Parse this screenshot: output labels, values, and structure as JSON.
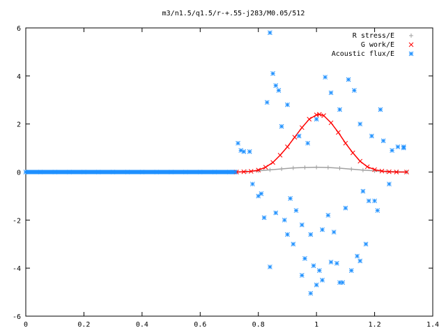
{
  "chart_data": {
    "type": "scatter",
    "title": "m3/n1.5/q1.5/r-+.55-j283/M0.05/512",
    "xlim": [
      0,
      1.4
    ],
    "ylim": [
      -6,
      6
    ],
    "x_ticks": [
      "0",
      "0.2",
      "0.4",
      "0.6",
      "0.8",
      "1",
      "1.2",
      "1.4"
    ],
    "y_ticks": [
      "-6",
      "-4",
      "-2",
      "0",
      "2",
      "4",
      "6"
    ],
    "legend_position": "top-right",
    "series": [
      {
        "name": "R stress/E",
        "color": "#a0a0a0",
        "marker": "plus",
        "x": [
          0.725,
          0.76,
          0.8,
          0.84,
          0.88,
          0.92,
          0.96,
          1.0,
          1.04,
          1.08,
          1.12,
          1.16,
          1.2,
          1.24,
          1.28,
          1.31
        ],
        "y": [
          0.0,
          0.02,
          0.05,
          0.09,
          0.13,
          0.17,
          0.19,
          0.2,
          0.19,
          0.16,
          0.12,
          0.08,
          0.05,
          0.02,
          0.01,
          0.0
        ]
      },
      {
        "name": "G work/E",
        "color": "#ff0000",
        "marker": "cross",
        "x": [
          0.725,
          0.75,
          0.775,
          0.8,
          0.825,
          0.85,
          0.875,
          0.9,
          0.925,
          0.95,
          0.975,
          1.0,
          1.01,
          1.025,
          1.05,
          1.075,
          1.1,
          1.125,
          1.15,
          1.175,
          1.2,
          1.225,
          1.25,
          1.275,
          1.31
        ],
        "y": [
          0.0,
          0.01,
          0.03,
          0.08,
          0.2,
          0.4,
          0.7,
          1.05,
          1.45,
          1.85,
          2.2,
          2.38,
          2.4,
          2.35,
          2.05,
          1.65,
          1.2,
          0.8,
          0.45,
          0.22,
          0.1,
          0.04,
          0.01,
          0.0,
          0.0
        ]
      },
      {
        "name": "Acoustic flux/E",
        "color": "#1e90ff",
        "marker": "star",
        "x": [
          0.0,
          0.05,
          0.1,
          0.15,
          0.2,
          0.25,
          0.3,
          0.35,
          0.4,
          0.45,
          0.5,
          0.55,
          0.6,
          0.65,
          0.7,
          0.72,
          0.73,
          0.74,
          0.75,
          0.77,
          0.84,
          0.85,
          0.86,
          0.87,
          0.83,
          0.88,
          0.9,
          0.94,
          0.97,
          1.0,
          1.03,
          1.05,
          1.08,
          1.11,
          1.13,
          1.15,
          1.19,
          1.22,
          1.23,
          0.8,
          0.82,
          0.91,
          0.93,
          0.95,
          0.98,
          1.02,
          1.04,
          1.06,
          1.1,
          1.16,
          1.2,
          1.25,
          1.3,
          0.78,
          0.81,
          0.86,
          0.89,
          0.92,
          0.96,
          0.99,
          1.01,
          1.07,
          1.09,
          1.14,
          1.17,
          1.21,
          0.84,
          0.9,
          0.95,
          0.98,
          1.0,
          1.02,
          1.05,
          1.08,
          1.12,
          1.15,
          1.18,
          1.26,
          1.28,
          1.3
        ],
        "y": [
          0.0,
          0.0,
          0.0,
          0.0,
          0.0,
          0.0,
          0.0,
          0.0,
          0.0,
          0.0,
          0.0,
          0.0,
          0.0,
          0.0,
          0.0,
          0.0,
          1.2,
          0.9,
          0.85,
          0.85,
          5.8,
          4.1,
          3.6,
          3.4,
          2.9,
          1.9,
          2.8,
          1.5,
          1.2,
          2.2,
          3.95,
          3.3,
          2.6,
          3.85,
          3.4,
          2.0,
          1.5,
          2.6,
          1.3,
          -1.0,
          -1.9,
          -1.1,
          -1.6,
          -2.2,
          -2.6,
          -2.4,
          -1.8,
          -2.5,
          -1.5,
          -0.8,
          -1.2,
          -0.5,
          1.0,
          -0.5,
          -0.9,
          -1.7,
          -2.0,
          -3.0,
          -3.6,
          -3.9,
          -4.1,
          -3.8,
          -4.6,
          -3.5,
          -3.0,
          -1.6,
          -3.95,
          -2.6,
          -4.3,
          -5.05,
          -4.7,
          -4.5,
          -3.75,
          -4.6,
          -4.1,
          -3.7,
          -1.2,
          0.9,
          1.05,
          1.05
        ]
      }
    ]
  }
}
